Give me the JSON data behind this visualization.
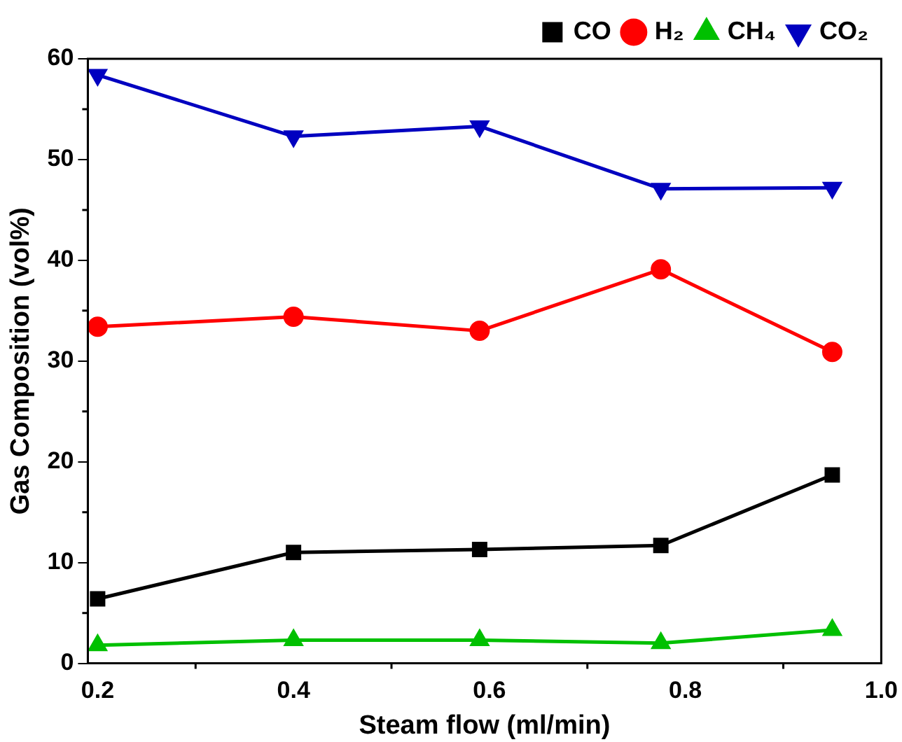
{
  "chart_data": {
    "type": "line",
    "xlabel": "Steam flow (ml/min)",
    "ylabel": "Gas Composition (vol%)",
    "x": [
      0.2,
      0.4,
      0.59,
      0.775,
      0.95
    ],
    "series": [
      {
        "name": "CO",
        "color": "#000000",
        "marker": "square",
        "values": [
          6.4,
          11.0,
          11.3,
          11.7,
          18.7
        ]
      },
      {
        "name": "H₂",
        "color": "#ff0000",
        "marker": "circle",
        "values": [
          33.4,
          34.4,
          33.0,
          39.1,
          30.9
        ]
      },
      {
        "name": "CH₄",
        "color": "#00c000",
        "marker": "triangle",
        "values": [
          1.8,
          2.3,
          2.3,
          2.0,
          3.3
        ]
      },
      {
        "name": "CO₂",
        "color": "#0000c0",
        "marker": "triangle-down",
        "values": [
          58.4,
          52.3,
          53.3,
          47.1,
          47.2
        ]
      }
    ],
    "xlim": [
      0.19,
      1.0
    ],
    "xticks": [
      {
        "value": 0.2,
        "label": "0.2"
      },
      {
        "value": 0.4,
        "label": "0.4"
      },
      {
        "value": 0.6,
        "label": "0.6"
      },
      {
        "value": 0.8,
        "label": "0.8"
      },
      {
        "value": 1,
        "label": "1.0"
      }
    ],
    "ylim": [
      0,
      60
    ],
    "yticks": [
      0,
      10,
      20,
      30,
      40,
      50,
      60
    ],
    "grid": false,
    "legend": "top",
    "line_style": "solid"
  }
}
